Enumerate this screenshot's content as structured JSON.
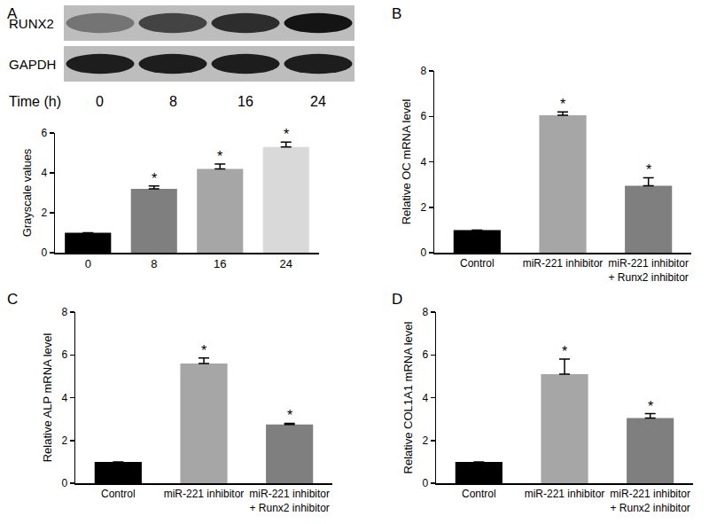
{
  "blot": {
    "rows": [
      "RUNX2",
      "GAPDH"
    ],
    "lane_title": "Time (h)",
    "lanes": [
      "0",
      "8",
      "16",
      "24"
    ]
  },
  "chart_data": [
    {
      "type": "bar",
      "title": "A",
      "ylabel": "Grayscale values",
      "categories": [
        "0",
        "8",
        "16",
        "24"
      ],
      "values": [
        1.0,
        3.2,
        4.2,
        5.3
      ],
      "errors": [
        0,
        0.15,
        0.25,
        0.25
      ],
      "colors": [
        "#000000",
        "#7f7f7f",
        "#a6a6a6",
        "#d9d9d9"
      ],
      "ylim": [
        0,
        6
      ],
      "yticks": [
        0,
        2,
        4,
        6
      ],
      "annotations": [
        {
          "category": "8",
          "text": "*"
        },
        {
          "category": "16",
          "text": "*"
        },
        {
          "category": "24",
          "text": "*"
        }
      ]
    },
    {
      "type": "bar",
      "title": "B",
      "ylabel": "Relative OC mRNA level",
      "categories": [
        "Control",
        "miR-221 inhibitor",
        "miR-221 inhibitor\n+ Runx2 inhibitor"
      ],
      "values": [
        1.0,
        6.05,
        2.95
      ],
      "errors": [
        0,
        0.15,
        0.35
      ],
      "colors": [
        "#000000",
        "#a6a6a6",
        "#7f7f7f"
      ],
      "ylim": [
        0,
        8
      ],
      "yticks": [
        0,
        2,
        4,
        6,
        8
      ],
      "annotations": [
        {
          "category": "miR-221 inhibitor",
          "text": "*"
        },
        {
          "category": "miR-221 inhibitor\n+ Runx2 inhibitor",
          "text": "*"
        }
      ]
    },
    {
      "type": "bar",
      "title": "C",
      "ylabel": "Relative ALP mRNA level",
      "categories": [
        "Control",
        "miR-221 inhibitor",
        "miR-221 inhibitor\n+ Runx2 inhibitor"
      ],
      "values": [
        1.0,
        5.6,
        2.75
      ],
      "errors": [
        0,
        0.25,
        0.05
      ],
      "colors": [
        "#000000",
        "#a6a6a6",
        "#7f7f7f"
      ],
      "ylim": [
        0,
        8
      ],
      "yticks": [
        0,
        2,
        4,
        6,
        8
      ],
      "annotations": [
        {
          "category": "miR-221 inhibitor",
          "text": "*"
        },
        {
          "category": "miR-221 inhibitor\n+ Runx2 inhibitor",
          "text": "*"
        }
      ]
    },
    {
      "type": "bar",
      "title": "D",
      "ylabel": "Relative COL1A1 mRNA level",
      "categories": [
        "Control",
        "miR-221 inhibitor",
        "miR-221 inhibitor\n+ Runx2 inhibitor"
      ],
      "values": [
        1.0,
        5.1,
        3.05
      ],
      "errors": [
        0,
        0.7,
        0.2
      ],
      "colors": [
        "#000000",
        "#a6a6a6",
        "#7f7f7f"
      ],
      "ylim": [
        0,
        8
      ],
      "yticks": [
        0,
        2,
        4,
        6,
        8
      ],
      "annotations": [
        {
          "category": "miR-221 inhibitor",
          "text": "*"
        },
        {
          "category": "miR-221 inhibitor\n+ Runx2 inhibitor",
          "text": "*"
        }
      ]
    }
  ]
}
